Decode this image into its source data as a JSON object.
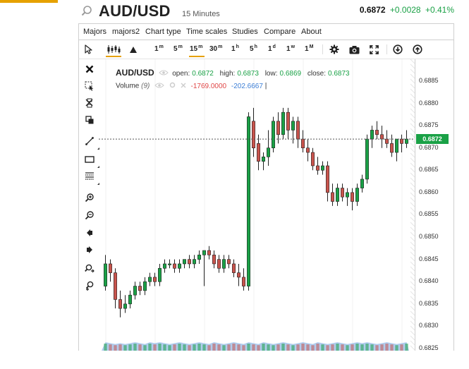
{
  "header": {
    "symbol": "AUD/USD",
    "timeframe": "15 Minutes",
    "price": "0.6872",
    "change": "+0.0028",
    "change_pct": "+0.41%",
    "positive_color": "#1aa146"
  },
  "menu": [
    "Majors",
    "majors2",
    "Chart type",
    "Time scales",
    "Studies",
    "Compare",
    "About"
  ],
  "toolbar": {
    "timeframes": [
      {
        "num": "1",
        "unit": "m"
      },
      {
        "num": "5",
        "unit": "m"
      },
      {
        "num": "15",
        "unit": "m"
      },
      {
        "num": "30",
        "unit": "m"
      },
      {
        "num": "1",
        "unit": "h"
      },
      {
        "num": "5",
        "unit": "h"
      },
      {
        "num": "1",
        "unit": "d"
      },
      {
        "num": "1",
        "unit": "w"
      },
      {
        "num": "1",
        "unit": "M"
      }
    ],
    "active_timeframe": "15m",
    "active_chart_type": "candles",
    "icons": [
      "cursor-icon",
      "candles-icon",
      "mountain-icon",
      "gear-icon",
      "camera-icon",
      "fullscreen-icon",
      "download-icon",
      "upload-icon"
    ]
  },
  "sidebar_tools": [
    "close-icon",
    "select-region-icon",
    "delete-drawings-icon",
    "clone-icon",
    "trend-line-icon",
    "rectangle-icon",
    "fibonacci-icon",
    "zoom-in-icon",
    "zoom-out-icon",
    "scroll-left-icon",
    "scroll-right-icon",
    "zoom-fit-icon",
    "zoom-reset-icon"
  ],
  "legend": {
    "symbol": "AUD/USD",
    "open_label": "open:",
    "open": "0.6872",
    "high_label": "high:",
    "high": "0.6873",
    "low_label": "low:",
    "low": "0.6869",
    "close_label": "close:",
    "close": "0.6873",
    "volume_label": "Volume",
    "volume_period": "(9)",
    "volume_value": "-1769.0000",
    "volume_ma": "-202.6667",
    "volume_cursor": "|"
  },
  "axis": {
    "ticks": [
      "0.6885",
      "0.6880",
      "0.6875",
      "0.6870",
      "0.6865",
      "0.6860",
      "0.6855",
      "0.6850",
      "0.6845",
      "0.6840",
      "0.6835",
      "0.6830",
      "0.6825"
    ],
    "current_price_tag": "0.6872"
  },
  "colors": {
    "up": "#1aa146",
    "down": "#c9544d",
    "accent": "#e6a100",
    "volume_area": "#9ec1ea"
  },
  "chart_data": {
    "type": "candlestick",
    "ylim": [
      0.6825,
      0.6888
    ],
    "last_price": 0.6872,
    "candles": [
      {
        "o": 0.6839,
        "h": 0.6846,
        "l": 0.6838,
        "c": 0.6844
      },
      {
        "o": 0.6844,
        "h": 0.6845,
        "l": 0.684,
        "c": 0.6842
      },
      {
        "o": 0.6842,
        "h": 0.6843,
        "l": 0.6834,
        "c": 0.6836
      },
      {
        "o": 0.6836,
        "h": 0.6838,
        "l": 0.6832,
        "c": 0.6834
      },
      {
        "o": 0.6834,
        "h": 0.6837,
        "l": 0.6833,
        "c": 0.6835
      },
      {
        "o": 0.6835,
        "h": 0.6838,
        "l": 0.6834,
        "c": 0.6837
      },
      {
        "o": 0.6837,
        "h": 0.684,
        "l": 0.6836,
        "c": 0.6839
      },
      {
        "o": 0.6839,
        "h": 0.684,
        "l": 0.6837,
        "c": 0.6838
      },
      {
        "o": 0.6838,
        "h": 0.6841,
        "l": 0.6837,
        "c": 0.684
      },
      {
        "o": 0.684,
        "h": 0.6842,
        "l": 0.6839,
        "c": 0.6841
      },
      {
        "o": 0.6841,
        "h": 0.6842,
        "l": 0.6839,
        "c": 0.684
      },
      {
        "o": 0.684,
        "h": 0.6844,
        "l": 0.6839,
        "c": 0.6843
      },
      {
        "o": 0.6843,
        "h": 0.6845,
        "l": 0.6842,
        "c": 0.6844
      },
      {
        "o": 0.6844,
        "h": 0.6845,
        "l": 0.6843,
        "c": 0.6844
      },
      {
        "o": 0.6844,
        "h": 0.6845,
        "l": 0.6842,
        "c": 0.6843
      },
      {
        "o": 0.6843,
        "h": 0.6845,
        "l": 0.6842,
        "c": 0.6844
      },
      {
        "o": 0.6844,
        "h": 0.6845,
        "l": 0.6843,
        "c": 0.6845
      },
      {
        "o": 0.6845,
        "h": 0.6846,
        "l": 0.6843,
        "c": 0.6844
      },
      {
        "o": 0.6844,
        "h": 0.6846,
        "l": 0.6843,
        "c": 0.6845
      },
      {
        "o": 0.6845,
        "h": 0.6847,
        "l": 0.6844,
        "c": 0.6846
      },
      {
        "o": 0.6846,
        "h": 0.6847,
        "l": 0.6839,
        "c": 0.6847
      },
      {
        "o": 0.6847,
        "h": 0.6848,
        "l": 0.6845,
        "c": 0.6846
      },
      {
        "o": 0.6846,
        "h": 0.6847,
        "l": 0.6843,
        "c": 0.6844
      },
      {
        "o": 0.6845,
        "h": 0.6846,
        "l": 0.6842,
        "c": 0.6843
      },
      {
        "o": 0.6843,
        "h": 0.6846,
        "l": 0.6842,
        "c": 0.6845
      },
      {
        "o": 0.6845,
        "h": 0.6846,
        "l": 0.6843,
        "c": 0.6844
      },
      {
        "o": 0.6844,
        "h": 0.6845,
        "l": 0.6841,
        "c": 0.6842
      },
      {
        "o": 0.6842,
        "h": 0.6844,
        "l": 0.6839,
        "c": 0.6841
      },
      {
        "o": 0.6841,
        "h": 0.6843,
        "l": 0.6838,
        "c": 0.6839
      },
      {
        "o": 0.6839,
        "h": 0.6878,
        "l": 0.6838,
        "c": 0.6877
      },
      {
        "o": 0.6876,
        "h": 0.6879,
        "l": 0.6868,
        "c": 0.687
      },
      {
        "o": 0.6871,
        "h": 0.6873,
        "l": 0.6865,
        "c": 0.6867
      },
      {
        "o": 0.6867,
        "h": 0.6869,
        "l": 0.6865,
        "c": 0.6868
      },
      {
        "o": 0.6868,
        "h": 0.6874,
        "l": 0.6866,
        "c": 0.687
      },
      {
        "o": 0.687,
        "h": 0.6877,
        "l": 0.6869,
        "c": 0.6876
      },
      {
        "o": 0.6876,
        "h": 0.6878,
        "l": 0.6871,
        "c": 0.6873
      },
      {
        "o": 0.6873,
        "h": 0.6879,
        "l": 0.6872,
        "c": 0.6878
      },
      {
        "o": 0.6878,
        "h": 0.6879,
        "l": 0.6872,
        "c": 0.6874
      },
      {
        "o": 0.6874,
        "h": 0.6877,
        "l": 0.6871,
        "c": 0.6876
      },
      {
        "o": 0.6876,
        "h": 0.6877,
        "l": 0.687,
        "c": 0.6872
      },
      {
        "o": 0.6872,
        "h": 0.6874,
        "l": 0.6869,
        "c": 0.687
      },
      {
        "o": 0.687,
        "h": 0.6872,
        "l": 0.6867,
        "c": 0.6869
      },
      {
        "o": 0.6869,
        "h": 0.687,
        "l": 0.6865,
        "c": 0.6866
      },
      {
        "o": 0.6866,
        "h": 0.6868,
        "l": 0.6864,
        "c": 0.6865
      },
      {
        "o": 0.6865,
        "h": 0.6867,
        "l": 0.6864,
        "c": 0.6866
      },
      {
        "o": 0.6866,
        "h": 0.6867,
        "l": 0.6858,
        "c": 0.686
      },
      {
        "o": 0.686,
        "h": 0.6862,
        "l": 0.6857,
        "c": 0.6858
      },
      {
        "o": 0.6858,
        "h": 0.6862,
        "l": 0.6857,
        "c": 0.6861
      },
      {
        "o": 0.6861,
        "h": 0.6862,
        "l": 0.6858,
        "c": 0.6859
      },
      {
        "o": 0.6859,
        "h": 0.6861,
        "l": 0.6857,
        "c": 0.686
      },
      {
        "o": 0.686,
        "h": 0.6861,
        "l": 0.6856,
        "c": 0.6858
      },
      {
        "o": 0.6858,
        "h": 0.6862,
        "l": 0.6857,
        "c": 0.6861
      },
      {
        "o": 0.6861,
        "h": 0.6864,
        "l": 0.686,
        "c": 0.6863
      },
      {
        "o": 0.6863,
        "h": 0.6873,
        "l": 0.6862,
        "c": 0.6872
      },
      {
        "o": 0.6872,
        "h": 0.6875,
        "l": 0.687,
        "c": 0.6874
      },
      {
        "o": 0.6874,
        "h": 0.6876,
        "l": 0.6872,
        "c": 0.6873
      },
      {
        "o": 0.6873,
        "h": 0.6875,
        "l": 0.687,
        "c": 0.6872
      },
      {
        "o": 0.6872,
        "h": 0.6874,
        "l": 0.687,
        "c": 0.6871
      },
      {
        "o": 0.6871,
        "h": 0.6873,
        "l": 0.6868,
        "c": 0.6869
      },
      {
        "o": 0.6869,
        "h": 0.6872,
        "l": 0.6867,
        "c": 0.6872
      },
      {
        "o": 0.6872,
        "h": 0.6873,
        "l": 0.6869,
        "c": 0.6871
      },
      {
        "o": 0.6871,
        "h": 0.6874,
        "l": 0.687,
        "c": 0.6872
      }
    ],
    "volume": [
      9,
      8,
      7,
      8,
      7,
      8,
      9,
      8,
      7,
      9,
      8,
      9,
      8,
      7,
      8,
      9,
      8,
      7,
      8,
      9,
      8,
      7,
      9,
      8,
      7,
      8,
      9,
      8,
      7,
      9,
      8,
      7,
      9,
      8,
      7,
      8,
      9,
      8,
      7,
      8,
      9,
      8,
      7,
      9,
      8,
      7,
      8,
      9,
      8,
      7,
      8,
      9,
      8,
      9,
      8,
      7,
      8,
      9,
      8,
      7,
      8,
      9
    ]
  }
}
